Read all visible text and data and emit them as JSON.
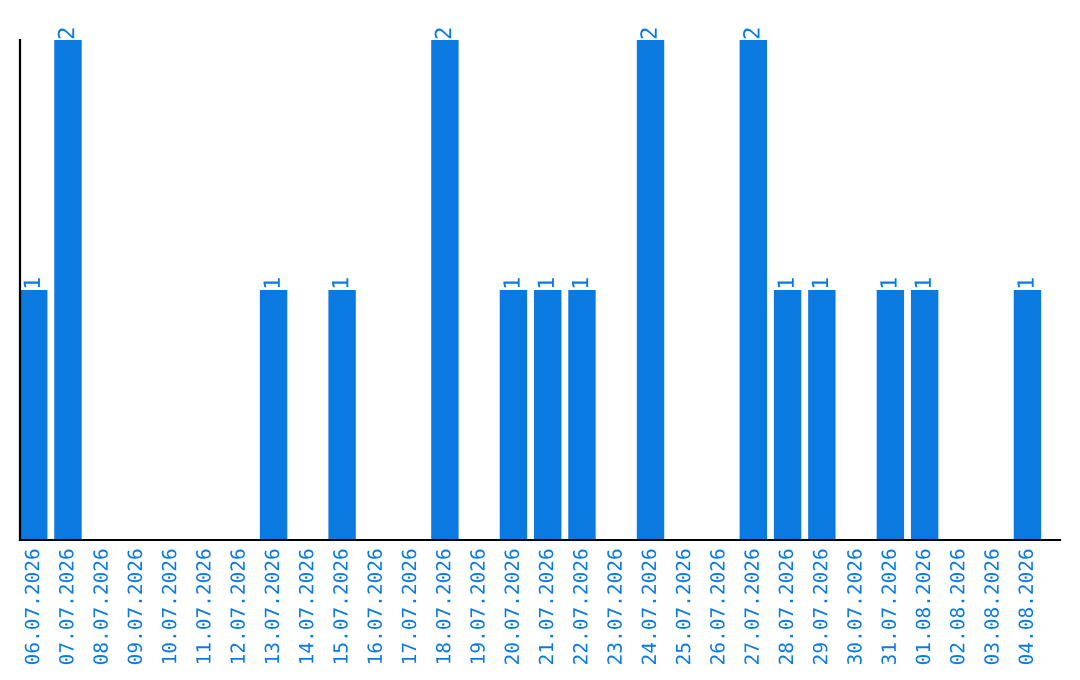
{
  "chart_data": {
    "type": "bar",
    "categories": [
      "06.07.2026",
      "07.07.2026",
      "08.07.2026",
      "09.07.2026",
      "10.07.2026",
      "11.07.2026",
      "12.07.2026",
      "13.07.2026",
      "14.07.2026",
      "15.07.2026",
      "16.07.2026",
      "17.07.2026",
      "18.07.2026",
      "19.07.2026",
      "20.07.2026",
      "21.07.2026",
      "22.07.2026",
      "23.07.2026",
      "24.07.2026",
      "25.07.2026",
      "26.07.2026",
      "27.07.2026",
      "28.07.2026",
      "29.07.2026",
      "30.07.2026",
      "31.07.2026",
      "01.08.2026",
      "02.08.2026",
      "03.08.2026",
      "04.08.2026"
    ],
    "values": [
      1,
      2,
      0,
      0,
      0,
      0,
      0,
      1,
      0,
      1,
      0,
      0,
      2,
      0,
      1,
      1,
      1,
      0,
      2,
      0,
      0,
      2,
      1,
      1,
      0,
      1,
      1,
      0,
      0,
      1
    ],
    "value_labels": [
      "1",
      "2",
      null,
      null,
      null,
      null,
      null,
      "1",
      null,
      "1",
      null,
      null,
      "2",
      null,
      "1",
      "1",
      "1",
      null,
      "2",
      null,
      null,
      "2",
      "1",
      "1",
      null,
      "1",
      "1",
      null,
      null,
      "1"
    ],
    "color": "#0a7ae0",
    "ylim": [
      0,
      2
    ],
    "tick_labels": "x",
    "grid": false,
    "legend": false
  }
}
